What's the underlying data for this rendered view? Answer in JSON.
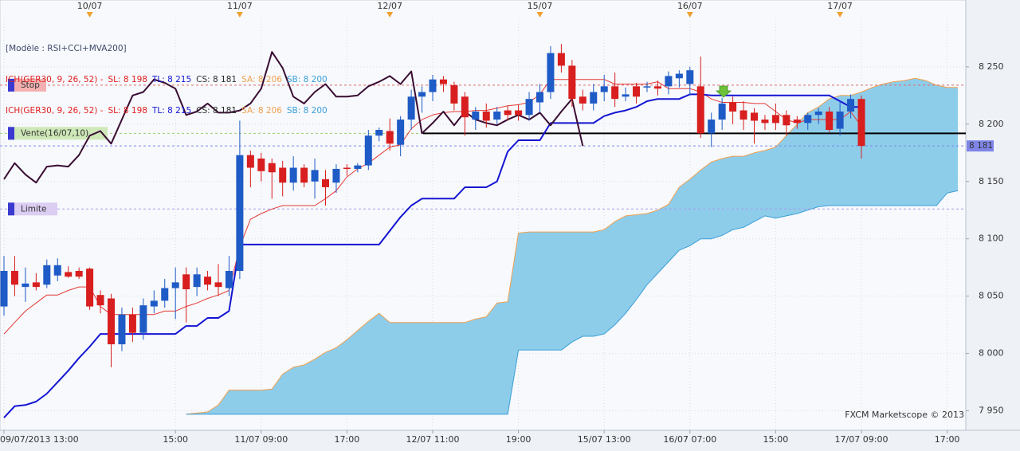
{
  "chart_data": {
    "type": "candlestick",
    "title": "[Modèle : RSI+CCI+MVA200]",
    "legend_lines": [
      [
        "ICH(GER30, 9, 26, 52) -",
        "SL: 8 198",
        "TL: 8 215",
        "CS: 8 181",
        "SA: 8 206",
        "SB: 8 200"
      ],
      [
        "ICH(GER30, 9, 26, 52) -",
        "SL: 8 198",
        "TL: 8 215",
        "CS: 8 181",
        "SA: 8 206",
        "SB: 8 200"
      ]
    ],
    "watermark": "FXCM Marketscope © 2013",
    "categories": [
      "09/07/2013 13:00",
      null,
      null,
      null,
      null,
      null,
      null,
      null,
      null,
      null,
      null,
      null,
      null,
      null,
      null,
      null,
      "15:00",
      null,
      null,
      null,
      null,
      null,
      null,
      null,
      "11/07 09:00",
      null,
      null,
      null,
      null,
      null,
      null,
      null,
      "17:00",
      null,
      null,
      null,
      null,
      null,
      null,
      null,
      "12/07 11:00",
      null,
      null,
      null,
      null,
      null,
      null,
      null,
      "19:00",
      null,
      null,
      null,
      null,
      null,
      null,
      null,
      "15/07 13:00",
      null,
      null,
      null,
      null,
      null,
      null,
      null,
      "16/07 07:00",
      null,
      null,
      null,
      null,
      null,
      null,
      null,
      "15:00",
      null,
      null,
      null,
      null,
      null,
      null,
      null,
      "17/07 09:00",
      null,
      null,
      null,
      null,
      null,
      null,
      null,
      "17:00",
      null
    ],
    "day_labels": [
      null,
      null,
      null,
      null,
      null,
      null,
      null,
      null,
      "10/07",
      null,
      null,
      null,
      null,
      null,
      null,
      null,
      null,
      null,
      null,
      null,
      null,
      null,
      "11/07",
      null,
      null,
      null,
      null,
      null,
      null,
      null,
      null,
      null,
      null,
      null,
      null,
      null,
      "12/07",
      null,
      null,
      null,
      null,
      null,
      null,
      null,
      null,
      null,
      null,
      null,
      null,
      null,
      "15/07",
      null,
      null,
      null,
      null,
      null,
      null,
      null,
      null,
      null,
      null,
      null,
      null,
      null,
      "16/07",
      null,
      null,
      null,
      null,
      null,
      null,
      null,
      null,
      null,
      null,
      null,
      null,
      null,
      "17/07",
      null,
      null,
      null,
      null,
      null,
      null,
      null,
      null,
      null,
      null,
      null
    ],
    "up_color": "#1e5bc6",
    "down_color": "#d81e1e",
    "open": [
      8041,
      8072,
      8058,
      8062,
      8060,
      8068,
      8071,
      8072,
      8074,
      8051,
      8048,
      8008,
      8034,
      8018,
      8041,
      8046,
      8057,
      8069,
      8058,
      8067,
      8062,
      8057,
      8072,
      8173,
      8170,
      8166,
      8162,
      8149,
      8162,
      8150,
      8152,
      8149,
      8162,
      8161,
      8164,
      8190,
      8194,
      8182,
      8204,
      8224,
      8228,
      8239,
      8234,
      8224,
      8204,
      8211,
      8204,
      8212,
      8212,
      8208,
      8219,
      8228,
      8262,
      8251,
      8224,
      8218,
      8228,
      8233,
      8224,
      8233,
      8232,
      8233,
      8233,
      8240,
      8235,
      8233,
      8192,
      8204,
      8219,
      8212,
      8210,
      8204,
      8208,
      8208,
      8204,
      8201,
      8208,
      8211,
      8196,
      8211,
      8222,
      null,
      null,
      null,
      null,
      null,
      null,
      null,
      null,
      null
    ],
    "high": [
      8085,
      8085,
      8075,
      8070,
      8082,
      8083,
      8076,
      8075,
      8075,
      8055,
      8052,
      8040,
      8040,
      8048,
      8055,
      8065,
      8075,
      8075,
      8075,
      8072,
      8078,
      8085,
      8203,
      8177,
      8175,
      8170,
      8168,
      8172,
      8165,
      8170,
      8160,
      8165,
      8165,
      8166,
      8195,
      8197,
      8205,
      8207,
      8230,
      8233,
      8243,
      8242,
      8237,
      8228,
      8215,
      8218,
      8215,
      8216,
      8217,
      8228,
      8235,
      8268,
      8270,
      8256,
      8230,
      8235,
      8243,
      8245,
      8232,
      8236,
      8237,
      8238,
      8246,
      8247,
      8250,
      8259,
      8210,
      8223,
      8224,
      8220,
      8214,
      8208,
      8218,
      8212,
      8207,
      8210,
      8214,
      8215,
      8220,
      8226,
      8225,
      null,
      null,
      null,
      null,
      null,
      null,
      null,
      null,
      null
    ],
    "low": [
      8033,
      8050,
      8045,
      8055,
      8057,
      8063,
      8066,
      8065,
      8038,
      8035,
      7988,
      8002,
      8010,
      8012,
      8035,
      8040,
      8030,
      8027,
      8050,
      8055,
      8050,
      8050,
      8065,
      8145,
      8150,
      8135,
      8137,
      8142,
      8145,
      8135,
      8129,
      8140,
      8155,
      8158,
      8160,
      8185,
      8177,
      8172,
      8195,
      8210,
      8220,
      8228,
      8212,
      8190,
      8195,
      8197,
      8200,
      8203,
      8203,
      8203,
      8210,
      8222,
      8245,
      8215,
      8212,
      8212,
      8220,
      8215,
      8220,
      8218,
      8228,
      8225,
      8226,
      8232,
      8225,
      8188,
      8180,
      8195,
      8200,
      8195,
      8183,
      8195,
      8195,
      8190,
      8196,
      8195,
      8200,
      8193,
      8190,
      8205,
      8170,
      null,
      null,
      null,
      null,
      null,
      null,
      null,
      null,
      null
    ],
    "close": [
      8072,
      8060,
      8061,
      8058,
      8077,
      8077,
      8067,
      8067,
      8041,
      8042,
      8008,
      8034,
      8018,
      8042,
      8046,
      8057,
      8062,
      8056,
      8069,
      8060,
      8058,
      8072,
      8173,
      8162,
      8159,
      8158,
      8149,
      8162,
      8149,
      8160,
      8145,
      8161,
      8161,
      8164,
      8190,
      8195,
      8183,
      8204,
      8224,
      8228,
      8239,
      8235,
      8218,
      8206,
      8211,
      8203,
      8211,
      8208,
      8208,
      8222,
      8228,
      8262,
      8251,
      8222,
      8218,
      8228,
      8233,
      8222,
      8226,
      8224,
      8233,
      8231,
      8242,
      8244,
      8247,
      8192,
      8204,
      8218,
      8211,
      8204,
      8203,
      8201,
      8201,
      8199,
      8201,
      8208,
      8211,
      8195,
      8211,
      8222,
      8181,
      null,
      null,
      null,
      null,
      null,
      null,
      null,
      null,
      null
    ],
    "series": [
      {
        "color": "#e53935",
        "width": 1,
        "values": [
          8017,
          8027,
          8037,
          8044,
          8051,
          8051,
          8055,
          8058,
          8058,
          8041,
          8034,
          8034,
          8034,
          8034,
          8034,
          8037,
          8037,
          8041,
          8044,
          8048,
          8051,
          8055,
          8093,
          8117,
          8122,
          8126,
          8129,
          8129,
          8129,
          8129,
          8135,
          8142,
          8154,
          8161,
          8166,
          8173,
          8180,
          8182,
          8196,
          8204,
          8208,
          8210,
          8211,
          8211,
          8212,
          8212,
          8214,
          8216,
          8217,
          8219,
          8226,
          8239,
          8239,
          8239,
          8239,
          8239,
          8239,
          8235,
          8235,
          8235,
          8235,
          8237,
          8231,
          8231,
          8231,
          8228,
          8222,
          8219,
          8219,
          8219,
          8218,
          8218,
          8211,
          8204,
          8201,
          8204,
          8204,
          8204,
          8204,
          8211,
          8198,
          null,
          null,
          null,
          null,
          null,
          null,
          null,
          null,
          null
        ]
      },
      {
        "color": "#1414d2",
        "width": 2,
        "values": [
          7944,
          7954,
          7955,
          7958,
          7965,
          7975,
          7985,
          7996,
          8006,
          8017,
          8017,
          8017,
          8017,
          8017,
          8017,
          8017,
          8017,
          8024,
          8024,
          8031,
          8031,
          8037,
          8095,
          8095,
          8095,
          8095,
          8095,
          8095,
          8095,
          8095,
          8095,
          8095,
          8095,
          8095,
          8095,
          8095,
          8107,
          8119,
          8129,
          8135,
          8135,
          8135,
          8135,
          8145,
          8145,
          8145,
          8150,
          8176,
          8186,
          8186,
          8186,
          8201,
          8201,
          8201,
          8201,
          8201,
          8207,
          8210,
          8212,
          8215,
          8220,
          8222,
          8222,
          8222,
          8226,
          8226,
          8225,
          8225,
          8225,
          8225,
          8225,
          8225,
          8225,
          8225,
          8225,
          8225,
          8225,
          8225,
          8220,
          8215,
          8215,
          null,
          null,
          null,
          null,
          null,
          null,
          null,
          null,
          null
        ]
      },
      {
        "color": "#3a0d33",
        "width": 2,
        "values": [
          8152,
          8166,
          8156,
          8149,
          8163,
          8164,
          8163,
          8173,
          8190,
          8194,
          8183,
          8204,
          8225,
          8228,
          8239,
          8236,
          8231,
          8208,
          8211,
          8218,
          8210,
          8210,
          8212,
          8218,
          8231,
          8263,
          8249,
          8224,
          8218,
          8228,
          8235,
          8224,
          8224,
          8225,
          8233,
          8237,
          8242,
          8235,
          8246,
          8192,
          8201,
          8211,
          8199,
          8211,
          8204,
          8201,
          8199,
          8204,
          8208,
          8204,
          8210,
          8199,
          8211,
          8222,
          8181,
          null,
          null,
          null,
          null,
          null,
          null,
          null,
          null,
          null,
          null,
          null,
          null,
          null,
          null,
          null,
          null,
          null,
          null,
          null,
          null,
          null,
          null,
          null,
          null,
          null,
          null,
          null,
          null,
          null,
          null,
          null,
          null,
          null,
          null,
          null
        ]
      }
    ],
    "cloud": {
      "color": "#8ecdea",
      "upper": {
        "color": "#f0a050",
        "values": [
          null,
          null,
          null,
          null,
          null,
          null,
          null,
          null,
          null,
          null,
          null,
          null,
          null,
          null,
          null,
          null,
          null,
          7947,
          7948,
          7949,
          7955,
          7968,
          7968,
          7968,
          7968,
          7969,
          7982,
          7988,
          7990,
          7995,
          8001,
          8005,
          8012,
          8020,
          8028,
          8035,
          8027,
          8027,
          8027,
          8027,
          8027,
          8027,
          8027,
          8027,
          8030,
          8032,
          8044,
          8045,
          8105,
          8106,
          8106,
          8106,
          8106,
          8106,
          8106,
          8106,
          8108,
          8115,
          8120,
          8121,
          8122,
          8125,
          8130,
          8145,
          8152,
          8160,
          8167,
          8170,
          8172,
          8172,
          8175,
          8177,
          8180,
          8190,
          8200,
          8210,
          8215,
          8222,
          8225,
          8225,
          8228,
          8232,
          8235,
          8237,
          8238,
          8240,
          8238,
          8234,
          8232,
          8232
        ]
      },
      "lower": {
        "color": "#3a9ed8",
        "values": [
          null,
          null,
          null,
          null,
          null,
          null,
          null,
          null,
          null,
          null,
          null,
          null,
          null,
          null,
          null,
          null,
          null,
          7947,
          7947,
          7947,
          7947,
          7947,
          7947,
          7947,
          7947,
          7947,
          7947,
          7947,
          7947,
          7947,
          7947,
          7947,
          7947,
          7947,
          7947,
          7947,
          7947,
          7947,
          7947,
          7947,
          7947,
          7947,
          7947,
          7947,
          7947,
          7947,
          7947,
          7947,
          8003,
          8003,
          8003,
          8003,
          8003,
          8010,
          8015,
          8015,
          8017,
          8025,
          8035,
          8047,
          8060,
          8070,
          8080,
          8090,
          8094,
          8100,
          8100,
          8103,
          8108,
          8110,
          8115,
          8120,
          8118,
          8120,
          8122,
          8125,
          8128,
          8129,
          8129,
          8129,
          8129,
          8129,
          8129,
          8129,
          8129,
          8129,
          8129,
          8129,
          8140,
          8142
        ]
      }
    },
    "levels": [
      {
        "label": "Stop",
        "value": 8234,
        "color": "#e06666",
        "box_color": "#f4b0b0",
        "text_color": "#e02828"
      },
      {
        "label": "Vente(16/07,10)",
        "value": 8192,
        "color": "#9bcf6a",
        "box_color": "#cfe8b8",
        "text_color": "#6f8f5a"
      },
      {
        "label": "Limite",
        "value": 8126,
        "color": "#a79be8",
        "box_color": "#dccdf2",
        "text_color": "#9a7ac8"
      }
    ],
    "last_price": {
      "value": 8181,
      "label": "8 181",
      "color": "#7f86e8"
    },
    "ylim": [
      7933,
      8293
    ],
    "yticks": [
      {
        "value": 7950,
        "label": "7 950"
      },
      {
        "value": 8000,
        "label": "8 000"
      },
      {
        "value": 8050,
        "label": "8 050"
      },
      {
        "value": 8100,
        "label": "8 100"
      },
      {
        "value": 8150,
        "label": "8 150"
      },
      {
        "value": 8200,
        "label": "8 200"
      },
      {
        "value": 8250,
        "label": "8 250"
      }
    ],
    "grid": true
  }
}
